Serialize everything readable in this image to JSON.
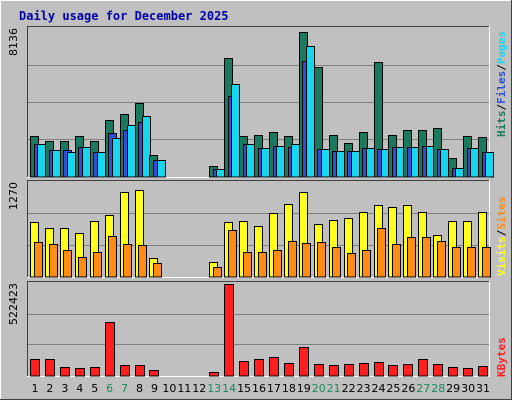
{
  "title": "Daily usage for December 2025",
  "colors": {
    "background": "#c0c0c0",
    "plot_bg": "#c0c0c0",
    "title": "#0000aa",
    "hits": "#1b7a5e",
    "files": "#2b4fd6",
    "pages": "#17d6f0",
    "visits": "#ffff1f",
    "sites": "#ff8c14",
    "kbytes": "#ff1f1f",
    "weekend_label": "#1b8a5a",
    "day_label": "#000000",
    "gridline": "#808080"
  },
  "legend_right": {
    "top": [
      {
        "text": "Hits",
        "color_key": "hits"
      },
      {
        "text": "/",
        "color_key": "day_label"
      },
      {
        "text": "Files",
        "color_key": "files"
      },
      {
        "text": "/",
        "color_key": "day_label"
      },
      {
        "text": "Pages",
        "color_key": "pages"
      }
    ],
    "middle": [
      {
        "text": "Visits",
        "color_key": "visits"
      },
      {
        "text": "/",
        "color_key": "day_label"
      },
      {
        "text": "Sites",
        "color_key": "sites"
      }
    ],
    "bottom": [
      {
        "text": "KBytes",
        "color_key": "kbytes"
      }
    ]
  },
  "chart_data": [
    {
      "type": "bar",
      "panel": "hits-files-pages",
      "ymax_label": "8136",
      "ylim": [
        0,
        8136
      ],
      "categories": [
        "1",
        "2",
        "3",
        "4",
        "5",
        "6",
        "7",
        "8",
        "9",
        "10",
        "11",
        "12",
        "13",
        "14",
        "15",
        "16",
        "17",
        "18",
        "19",
        "20",
        "21",
        "22",
        "23",
        "24",
        "25",
        "26",
        "27",
        "28",
        "29",
        "30",
        "31"
      ],
      "weekend_days": [
        "6",
        "7",
        "13",
        "14",
        "20",
        "21",
        "27",
        "28"
      ],
      "series": [
        {
          "name": "Hits",
          "values": [
            2260,
            1960,
            1960,
            2260,
            1960,
            3150,
            3460,
            4060,
            1200,
            0,
            0,
            0,
            610,
            6550,
            2260,
            2330,
            2450,
            2250,
            7980,
            6020,
            2330,
            1880,
            2450,
            6300,
            2330,
            2570,
            2570,
            2690,
            1020,
            2260,
            2210
          ]
        },
        {
          "name": "Files",
          "values": [
            1820,
            1480,
            1480,
            1670,
            1390,
            2410,
            2600,
            3000,
            920,
            0,
            0,
            0,
            420,
            4450,
            1820,
            1620,
            1690,
            1630,
            6400,
            1520,
            1440,
            1410,
            1610,
            1560,
            1650,
            1670,
            1720,
            1520,
            510,
            1580,
            1390
          ]
        },
        {
          "name": "Pages",
          "values": [
            1820,
            1480,
            1400,
            1670,
            1390,
            2160,
            2870,
            3360,
            920,
            0,
            0,
            0,
            420,
            5120,
            1820,
            1620,
            1690,
            1830,
            7200,
            1520,
            1440,
            1410,
            1610,
            1560,
            1650,
            1670,
            1720,
            1520,
            510,
            1580,
            1390
          ]
        }
      ]
    },
    {
      "type": "bar",
      "panel": "visits-sites",
      "ymax_label": "1270",
      "ylim": [
        0,
        1270
      ],
      "categories": [
        "1",
        "2",
        "3",
        "4",
        "5",
        "6",
        "7",
        "8",
        "9",
        "10",
        "11",
        "12",
        "13",
        "14",
        "15",
        "16",
        "17",
        "18",
        "19",
        "20",
        "21",
        "22",
        "23",
        "24",
        "25",
        "26",
        "27",
        "28",
        "29",
        "30",
        "31"
      ],
      "series": [
        {
          "name": "Visits",
          "values": [
            740,
            660,
            660,
            590,
            760,
            840,
            1150,
            1180,
            250,
            0,
            0,
            0,
            200,
            740,
            760,
            690,
            870,
            990,
            1150,
            720,
            770,
            800,
            880,
            970,
            950,
            970,
            880,
            570,
            760,
            760,
            880
          ]
        },
        {
          "name": "Sites",
          "values": [
            470,
            450,
            370,
            270,
            340,
            550,
            440,
            430,
            190,
            0,
            0,
            0,
            130,
            630,
            340,
            340,
            360,
            480,
            460,
            470,
            410,
            330,
            360,
            660,
            440,
            540,
            540,
            480,
            400,
            410,
            400
          ]
        }
      ]
    },
    {
      "type": "bar",
      "panel": "kbytes",
      "ymax_label": "522423",
      "ylim": [
        0,
        522423
      ],
      "categories": [
        "1",
        "2",
        "3",
        "4",
        "5",
        "6",
        "7",
        "8",
        "9",
        "10",
        "11",
        "12",
        "13",
        "14",
        "15",
        "16",
        "17",
        "18",
        "19",
        "20",
        "21",
        "22",
        "23",
        "24",
        "25",
        "26",
        "27",
        "28",
        "29",
        "30",
        "31"
      ],
      "series": [
        {
          "name": "KBytes",
          "values": [
            95000,
            95000,
            50000,
            45000,
            50000,
            305000,
            60000,
            65000,
            35000,
            0,
            0,
            0,
            25000,
            522423,
            85000,
            95000,
            110000,
            75000,
            165000,
            70000,
            60000,
            70000,
            75000,
            80000,
            65000,
            70000,
            95000,
            70000,
            50000,
            45000,
            55000
          ]
        }
      ]
    }
  ]
}
